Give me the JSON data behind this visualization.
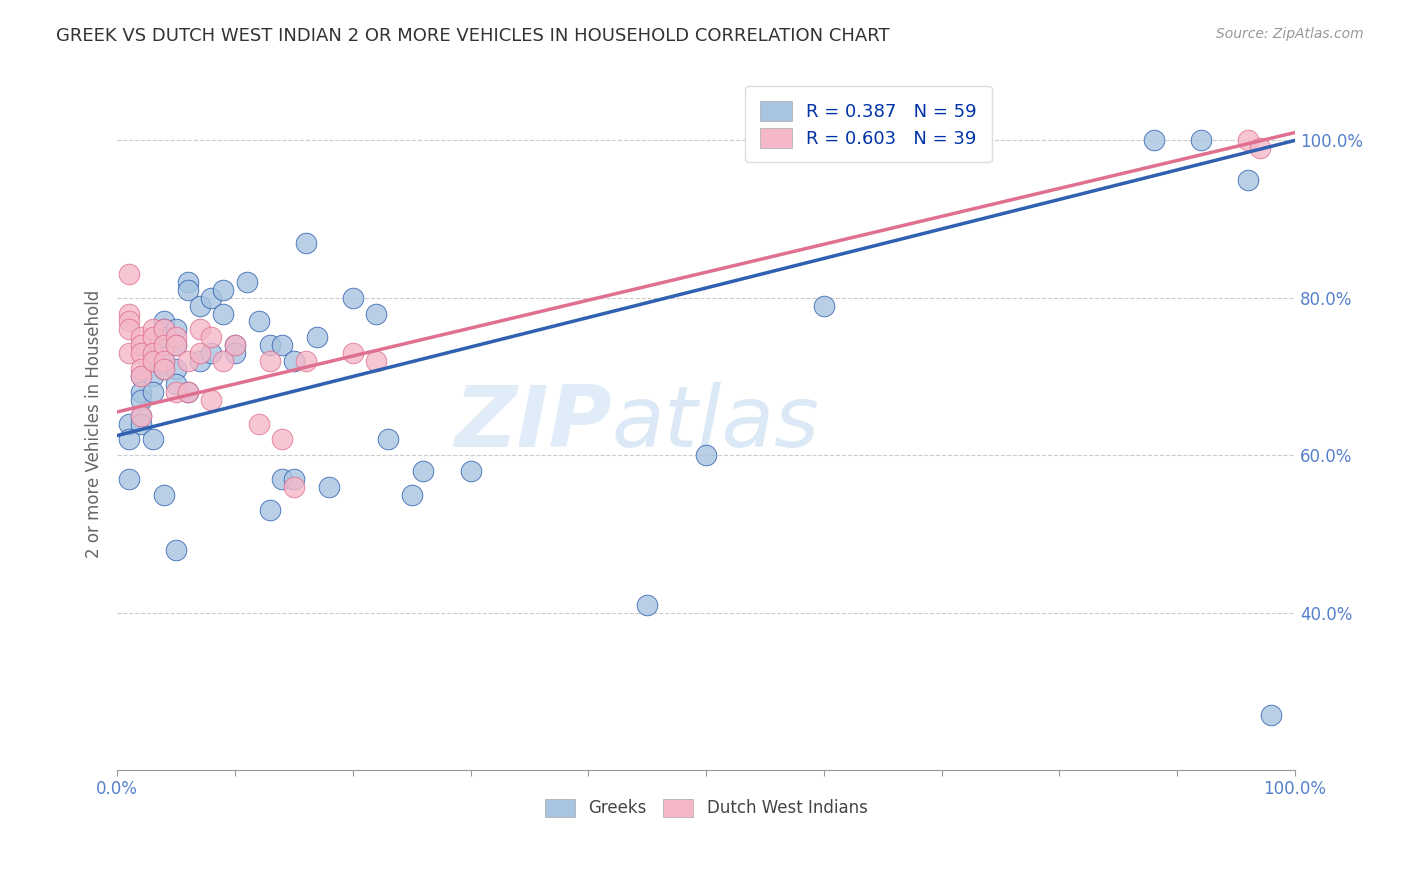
{
  "title": "GREEK VS DUTCH WEST INDIAN 2 OR MORE VEHICLES IN HOUSEHOLD CORRELATION CHART",
  "source": "Source: ZipAtlas.com",
  "ylabel": "2 or more Vehicles in Household",
  "legend_blue_label": "Greeks",
  "legend_pink_label": "Dutch West Indians",
  "R_blue": 0.387,
  "N_blue": 59,
  "R_pink": 0.603,
  "N_pink": 39,
  "blue_color": "#a8c4e0",
  "pink_color": "#f4b8c8",
  "blue_line_color": "#3060b0",
  "pink_line_color": "#e07090",
  "watermark_zip": "ZIP",
  "watermark_atlas": "atlas",
  "blue_x": [
    0.01,
    0.01,
    0.01,
    0.02,
    0.02,
    0.02,
    0.02,
    0.02,
    0.03,
    0.03,
    0.03,
    0.03,
    0.03,
    0.04,
    0.04,
    0.04,
    0.04,
    0.04,
    0.04,
    0.05,
    0.05,
    0.05,
    0.05,
    0.05,
    0.06,
    0.06,
    0.06,
    0.07,
    0.07,
    0.08,
    0.08,
    0.09,
    0.09,
    0.1,
    0.1,
    0.11,
    0.12,
    0.13,
    0.14,
    0.14,
    0.15,
    0.15,
    0.16,
    0.17,
    0.18,
    0.22,
    0.23,
    0.25,
    0.26,
    0.3,
    0.45,
    0.5,
    0.6,
    0.88,
    0.92,
    0.96,
    0.98,
    0.13,
    0.2
  ],
  "blue_y": [
    0.64,
    0.62,
    0.57,
    0.7,
    0.68,
    0.67,
    0.65,
    0.64,
    0.73,
    0.72,
    0.7,
    0.68,
    0.62,
    0.77,
    0.76,
    0.75,
    0.72,
    0.71,
    0.55,
    0.76,
    0.74,
    0.71,
    0.69,
    0.48,
    0.82,
    0.81,
    0.68,
    0.79,
    0.72,
    0.8,
    0.73,
    0.81,
    0.78,
    0.74,
    0.73,
    0.82,
    0.77,
    0.74,
    0.74,
    0.57,
    0.72,
    0.57,
    0.87,
    0.75,
    0.56,
    0.78,
    0.62,
    0.55,
    0.58,
    0.58,
    0.41,
    0.6,
    0.79,
    1.0,
    1.0,
    0.95,
    0.27,
    0.53,
    0.8
  ],
  "pink_x": [
    0.01,
    0.01,
    0.01,
    0.01,
    0.01,
    0.02,
    0.02,
    0.02,
    0.02,
    0.02,
    0.02,
    0.03,
    0.03,
    0.03,
    0.03,
    0.04,
    0.04,
    0.04,
    0.04,
    0.05,
    0.05,
    0.05,
    0.06,
    0.06,
    0.07,
    0.07,
    0.08,
    0.08,
    0.09,
    0.1,
    0.12,
    0.13,
    0.14,
    0.15,
    0.16,
    0.2,
    0.22,
    0.96,
    0.97
  ],
  "pink_y": [
    0.83,
    0.78,
    0.77,
    0.76,
    0.73,
    0.75,
    0.74,
    0.73,
    0.71,
    0.7,
    0.65,
    0.76,
    0.75,
    0.73,
    0.72,
    0.76,
    0.74,
    0.72,
    0.71,
    0.75,
    0.74,
    0.68,
    0.72,
    0.68,
    0.76,
    0.73,
    0.75,
    0.67,
    0.72,
    0.74,
    0.64,
    0.72,
    0.62,
    0.56,
    0.72,
    0.73,
    0.72,
    1.0,
    0.99
  ],
  "blue_line_y0": 0.625,
  "blue_line_y1": 1.0,
  "pink_line_y0": 0.655,
  "pink_line_y1": 1.01,
  "xlim": [
    0.0,
    1.0
  ],
  "ylim": [
    0.2,
    1.08
  ],
  "yticks": [
    0.4,
    0.6,
    0.8,
    1.0
  ],
  "ytick_labels": [
    "40.0%",
    "60.0%",
    "80.0%",
    "100.0%"
  ],
  "grid_color": "#cccccc",
  "background_color": "#ffffff",
  "tick_color": "#5580cc",
  "spine_color": "#cccccc"
}
